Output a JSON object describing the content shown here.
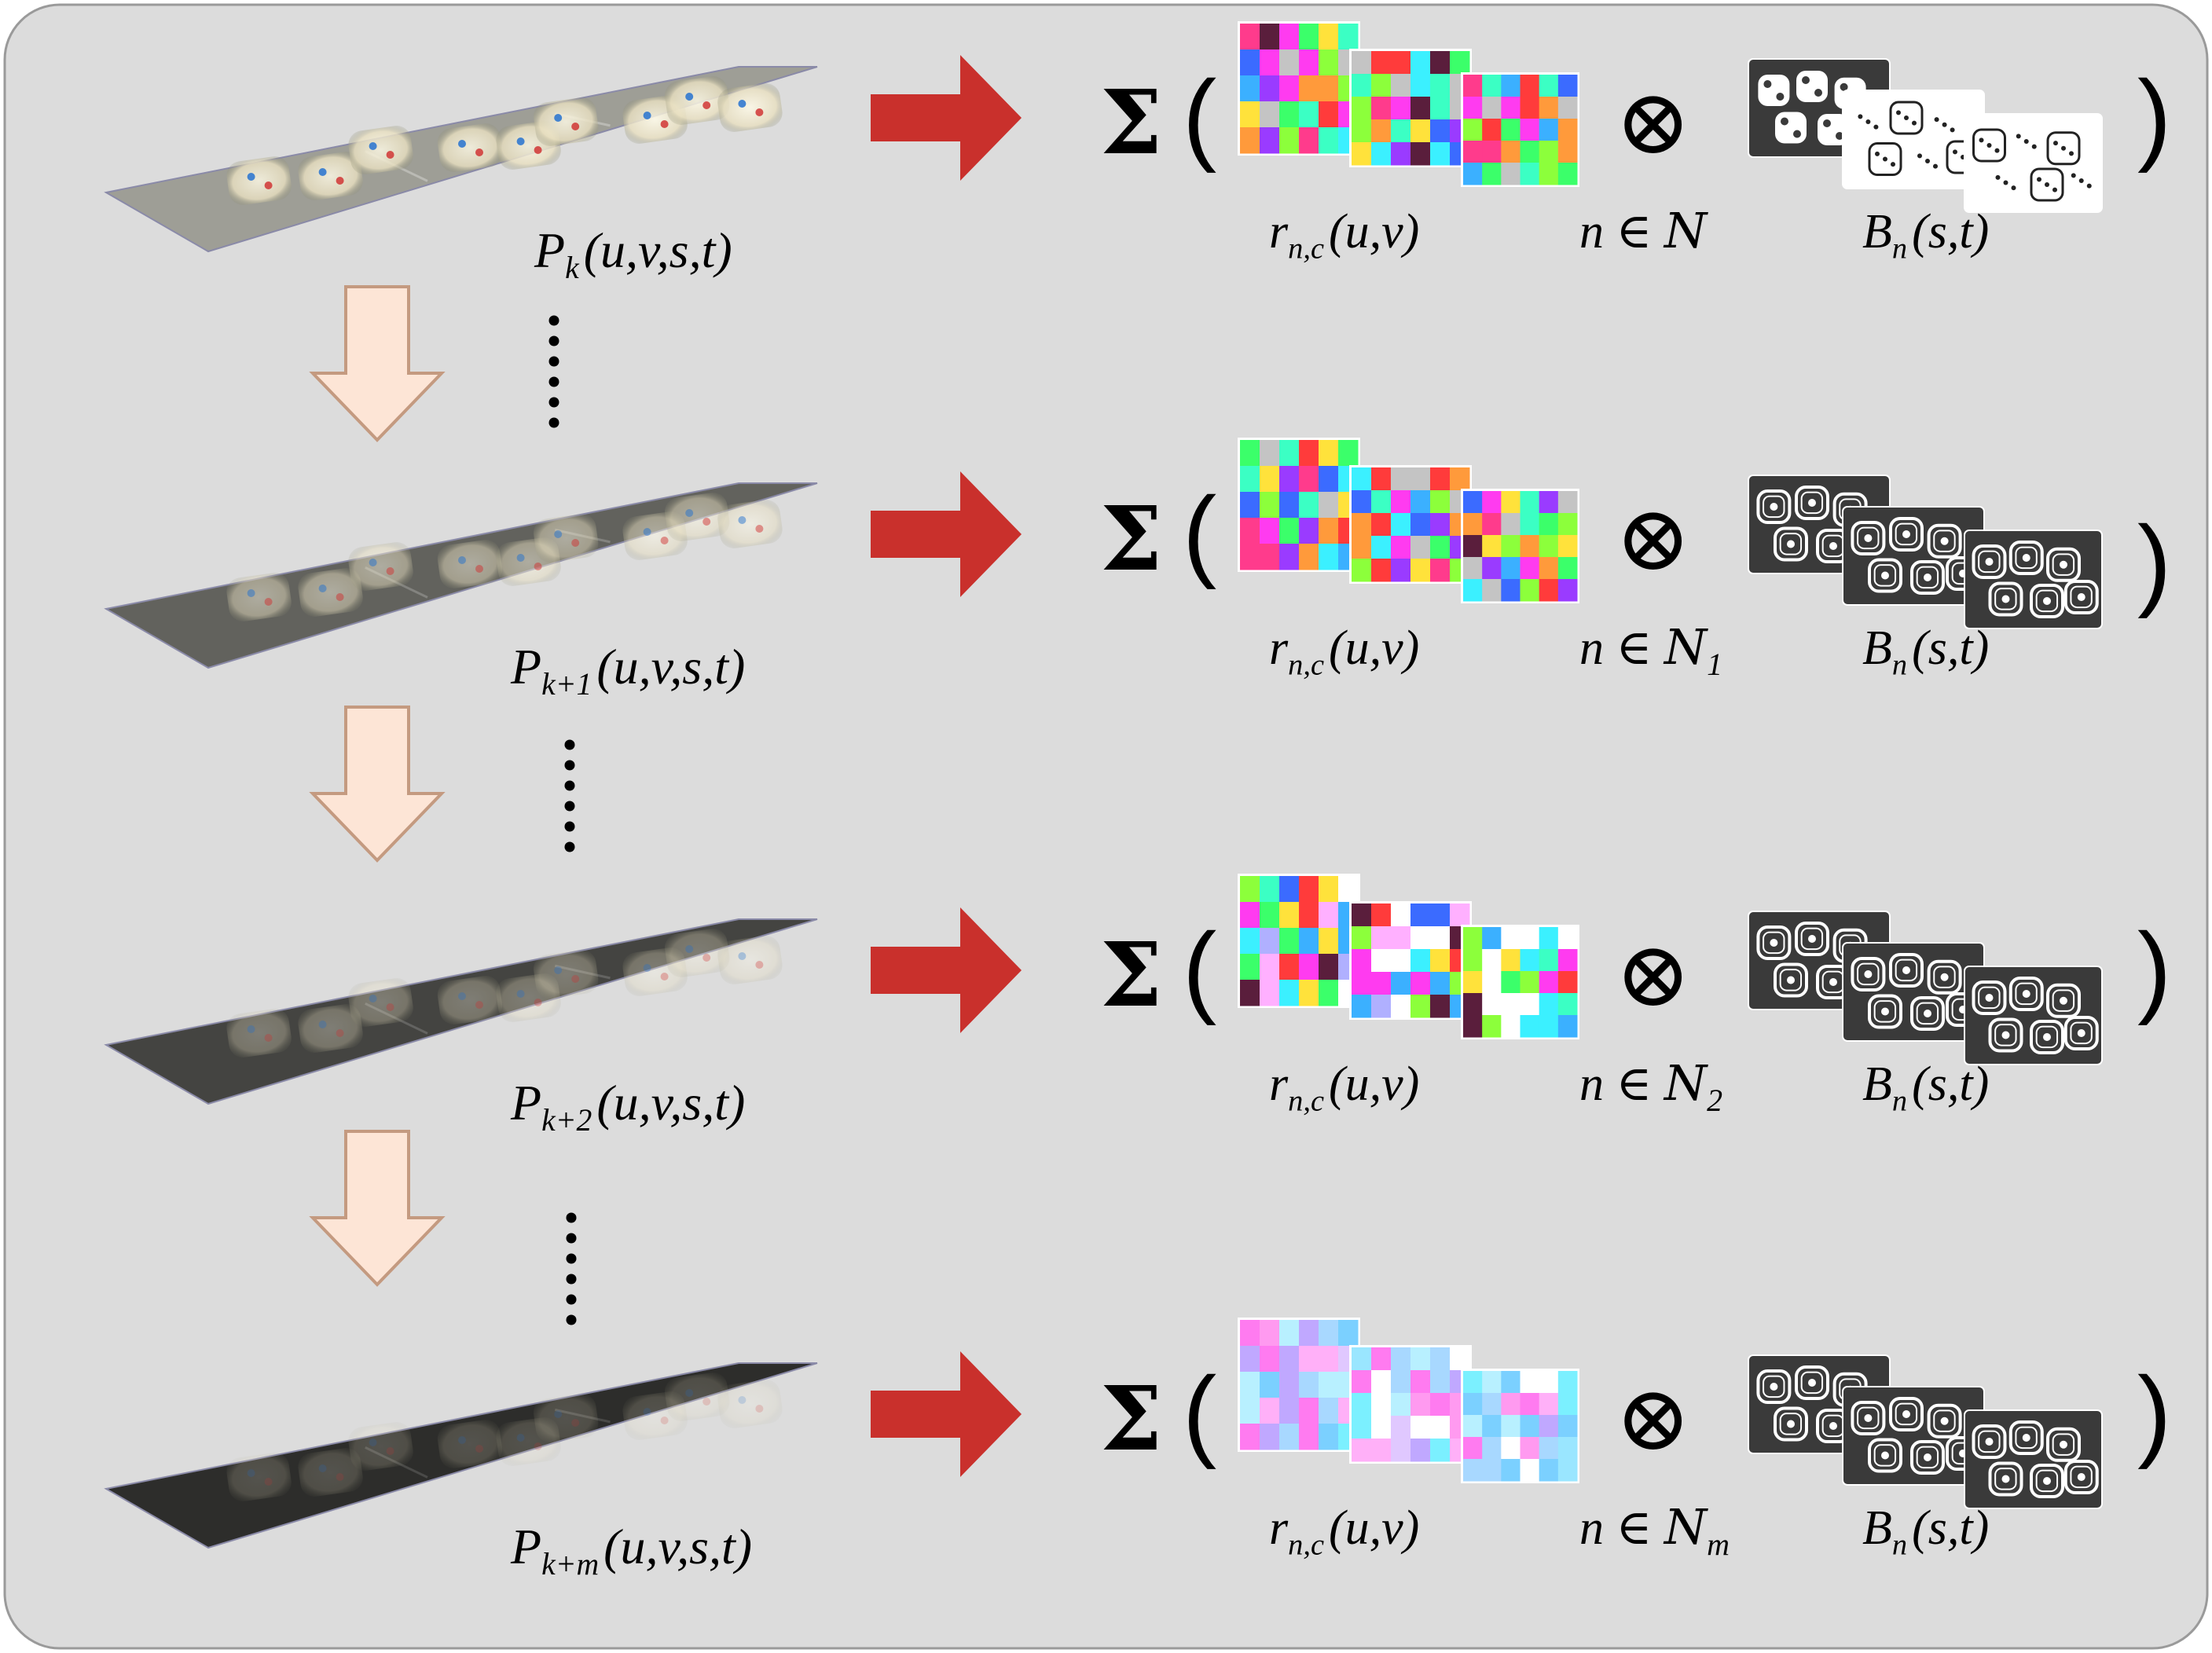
{
  "colors": {
    "background": "#dcdcdc",
    "panel_border": "#9a9a9a",
    "arrow_right": "#c9302c",
    "arrow_down_fill": "#fde5d6",
    "arrow_down_stroke": "#c49a80"
  },
  "operators": {
    "sum": "Σ",
    "open_paren": "(",
    "close_paren": ")",
    "tensor": "⊗"
  },
  "rows": [
    {
      "id": "k",
      "brightness": 0.85,
      "p_label": {
        "base": "P",
        "sub": "k",
        "args": "(u,v,s,t)"
      },
      "r_label": {
        "base": "r",
        "sub": "n,c",
        "args": "(u,v)"
      },
      "n_label": {
        "prefix": "n ∈",
        "set": "N",
        "sub": ""
      },
      "b_label": {
        "base": "B",
        "sub": "n",
        "args": "(s,t)"
      },
      "palette": "vivid",
      "basis_style": "masks"
    },
    {
      "id": "k+1",
      "brightness": 0.45,
      "p_label": {
        "base": "P",
        "sub": "k+1",
        "args": "(u,v,s,t)"
      },
      "r_label": {
        "base": "r",
        "sub": "n,c",
        "args": "(u,v)"
      },
      "n_label": {
        "prefix": "n ∈",
        "set": "N",
        "sub": "1"
      },
      "b_label": {
        "base": "B",
        "sub": "n",
        "args": "(s,t)"
      },
      "palette": "vivid",
      "basis_style": "edges"
    },
    {
      "id": "k+2",
      "brightness": 0.25,
      "p_label": {
        "base": "P",
        "sub": "k+2",
        "args": "(u,v,s,t)"
      },
      "r_label": {
        "base": "r",
        "sub": "n,c",
        "args": "(u,v)"
      },
      "n_label": {
        "prefix": "n ∈",
        "set": "N",
        "sub": "2"
      },
      "b_label": {
        "base": "B",
        "sub": "n",
        "args": "(s,t)"
      },
      "palette": "mixed",
      "basis_style": "edges"
    },
    {
      "id": "k+m",
      "brightness": 0.1,
      "p_label": {
        "base": "P",
        "sub": "k+m",
        "args": "(u,v,s,t)"
      },
      "r_label": {
        "base": "r",
        "sub": "n,c",
        "args": "(u,v)"
      },
      "n_label": {
        "prefix": "n ∈",
        "set": "N",
        "sub": "m"
      },
      "b_label": {
        "base": "B",
        "sub": "n",
        "args": "(s,t)"
      },
      "palette": "pastel",
      "basis_style": "edges"
    }
  ]
}
